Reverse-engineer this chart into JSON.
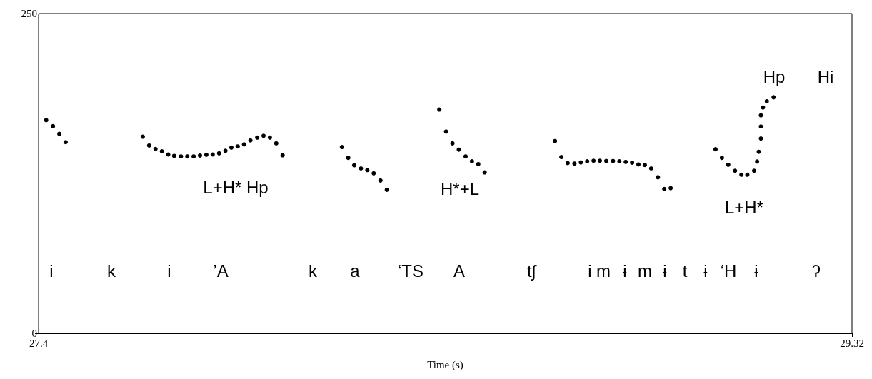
{
  "chart_data": {
    "type": "scatter",
    "xlabel": "Time (s)",
    "xlim": [
      27.4,
      29.32
    ],
    "xticks": [
      27.4,
      29.32
    ],
    "ylim": [
      0,
      250
    ],
    "yticks": [
      0,
      250
    ],
    "grid": false,
    "marker": "circle",
    "series": [
      {
        "color": "#000000",
        "x": [
          27.418,
          27.434,
          27.449,
          27.464
        ],
        "values": [
          166.6,
          161.9,
          155.9,
          149.4
        ]
      },
      {
        "color": "#000000",
        "x": [
          27.646,
          27.661,
          27.676,
          27.691,
          27.706,
          27.72,
          27.736,
          27.751,
          27.766,
          27.781,
          27.796,
          27.811,
          27.826,
          27.841,
          27.855,
          27.87,
          27.885,
          27.9,
          27.916,
          27.931,
          27.946,
          27.961,
          27.976
        ],
        "values": [
          153.7,
          146.8,
          144.1,
          142.3,
          139.8,
          138.7,
          138.3,
          138.3,
          138.3,
          139,
          139.6,
          139.8,
          140.7,
          142.7,
          145.2,
          146.1,
          147.7,
          150.8,
          153,
          154.4,
          153,
          148.5,
          139.2
        ]
      },
      {
        "color": "#000000",
        "x": [
          28.116,
          28.131,
          28.145,
          28.161,
          28.176,
          28.191,
          28.207,
          28.222
        ],
        "values": [
          145.6,
          137.2,
          131.4,
          128.9,
          127.6,
          125.1,
          119.5,
          112.2
        ]
      },
      {
        "color": "#000000",
        "x": [
          28.346,
          28.362,
          28.377,
          28.392,
          28.408,
          28.423,
          28.438,
          28.453
        ],
        "values": [
          174.9,
          157.7,
          148.5,
          143.6,
          138.3,
          134.5,
          132.3,
          125.8
        ]
      },
      {
        "color": "#000000",
        "x": [
          28.619,
          28.634,
          28.649,
          28.665,
          28.68,
          28.695,
          28.71,
          28.725,
          28.74,
          28.756,
          28.771,
          28.786,
          28.801,
          28.816,
          28.831,
          28.846,
          28.862,
          28.877,
          28.892
        ],
        "values": [
          150.3,
          137.8,
          133.1,
          132.7,
          133.6,
          134.5,
          134.9,
          134.9,
          134.7,
          134.7,
          134.5,
          134,
          133.4,
          132,
          131.6,
          128.9,
          122,
          112.8,
          113.5
        ]
      },
      {
        "color": "#000000",
        "x": [
          28.998,
          29.013,
          29.028,
          29.044,
          29.059,
          29.073,
          29.089,
          29.096,
          29.1,
          29.105,
          29.105,
          29.105,
          29.11,
          29.119,
          29.135
        ],
        "values": [
          143.9,
          137.2,
          131.8,
          127.1,
          124,
          124,
          127.1,
          134.3,
          141.9,
          152.3,
          161.7,
          170.4,
          176.5,
          181.4,
          184.5
        ]
      }
    ],
    "annotations": [
      "L+H* Hp",
      "H*+L",
      "Hp",
      "Hi",
      "L+H*",
      "i",
      "k",
      "i",
      "’A",
      "k",
      "a",
      "‘TS",
      "A",
      "tʃ",
      "i",
      "m",
      "ɨ",
      "m",
      "ɨ",
      "t",
      "ɨ",
      "‘H",
      "ɨ",
      "ʔ"
    ]
  }
}
